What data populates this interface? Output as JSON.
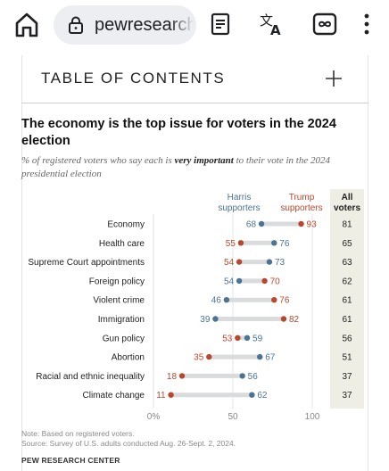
{
  "browser": {
    "url": "pewresearch",
    "icons": [
      "home-icon",
      "lock-icon",
      "reader-mode-icon",
      "translate-icon",
      "tabs-infinity-icon",
      "overflow-menu-icon"
    ]
  },
  "toc": {
    "title": "TABLE OF CONTENTS",
    "expand_icon": "plus-icon"
  },
  "chart_title": "The economy is the top issue for voters in the 2024 election",
  "subtitle": {
    "before": "% of registered voters who say each is ",
    "emphasis": "very important",
    "after": " to their vote in the 2024 presidential election"
  },
  "note": "Note: Based on registered voters.",
  "source": "Source: Survey of U.S. adults conducted Aug. 26-Sept. 2, 2024.",
  "brand": "PEW RESEARCH CENTER",
  "colors": {
    "harris": "#4a7394",
    "trump": "#b8472d",
    "bar": "#d9dbdc",
    "all_col_bg": "#eeeee4"
  },
  "chart_data": {
    "type": "dot",
    "categories": [
      "Economy",
      "Health care",
      "Supreme Court appointments",
      "Foreign policy",
      "Violent crime",
      "Immigration",
      "Gun policy",
      "Abortion",
      "Racial and ethnic inequality",
      "Climate change"
    ],
    "series": [
      {
        "name": "Harris supporters",
        "values": [
          68,
          76,
          73,
          54,
          46,
          39,
          59,
          67,
          56,
          62
        ]
      },
      {
        "name": "Trump supporters",
        "values": [
          93,
          55,
          54,
          70,
          76,
          82,
          53,
          35,
          18,
          11
        ]
      }
    ],
    "all_voters": {
      "name": "All voters",
      "values": [
        81,
        65,
        63,
        62,
        61,
        61,
        56,
        51,
        37,
        37
      ]
    },
    "x_ticks": [
      "0%",
      "50",
      "100"
    ],
    "xlim": [
      0,
      100
    ],
    "legend": {
      "harris": "Harris supporters",
      "trump": "Trump supporters",
      "all": "All voters"
    }
  }
}
